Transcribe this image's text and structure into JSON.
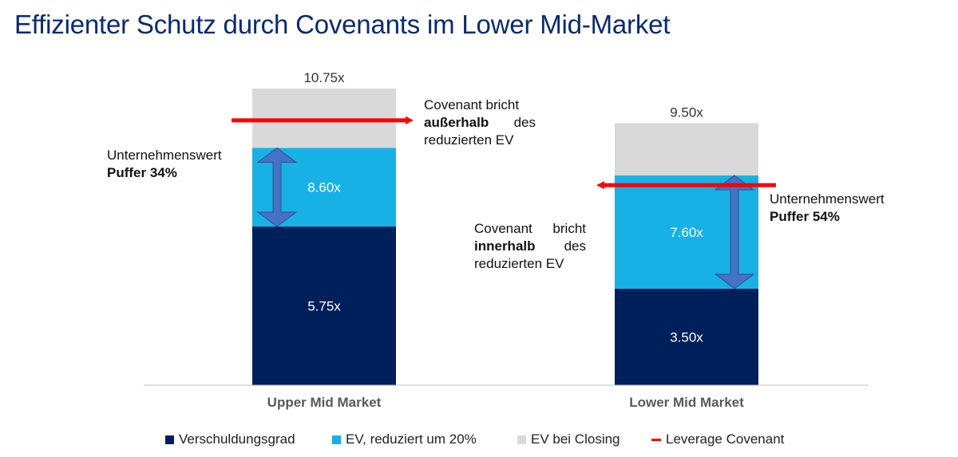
{
  "title": "Effizienter Schutz durch Covenants im Lower Mid-Market",
  "colors": {
    "debt": "#00205b",
    "ev_reduced": "#17b1e6",
    "ev_closing": "#d9d9d9",
    "covenant": "#ff0000",
    "arrow": "#4472c4",
    "title": "#0a2a6e"
  },
  "chart_data": {
    "type": "bar",
    "stacked": true,
    "categories": [
      "Upper Mid Market",
      "Lower Mid Market"
    ],
    "series": [
      {
        "name": "Verschuldungsgrad",
        "values": [
          5.75,
          3.5
        ],
        "labels": [
          "5.75x",
          "3.50x"
        ]
      },
      {
        "name": "EV, reduziert um 20%",
        "values": [
          8.6,
          7.6
        ],
        "labels": [
          "8.60x",
          "7.60x"
        ]
      },
      {
        "name": "EV bei Closing",
        "values": [
          10.75,
          9.5
        ],
        "labels": [
          "10.75x",
          "9.50x"
        ]
      }
    ],
    "legend": [
      "Verschuldungsgrad",
      "EV, reduziert um 20%",
      "EV bei Closing",
      "Leverage Covenant"
    ],
    "leverage_covenant": [
      9.6,
      7.25
    ]
  },
  "annotations": {
    "left_buffer_line1": "Unternehmenswert",
    "left_buffer_line2": "Puffer 34%",
    "left_cov_line1": "Covenant bricht",
    "left_cov_bold": "außerhalb",
    "left_cov_rest": "des",
    "left_cov_line3": "reduzierten EV",
    "right_buffer_line1": "Unternehmenswert",
    "right_buffer_line2": "Puffer 54%",
    "right_cov_line1a": "Covenant",
    "right_cov_line1b": "bricht",
    "right_cov_bold": "innerhalb",
    "right_cov_rest": "des",
    "right_cov_line3": "reduzierten EV"
  }
}
